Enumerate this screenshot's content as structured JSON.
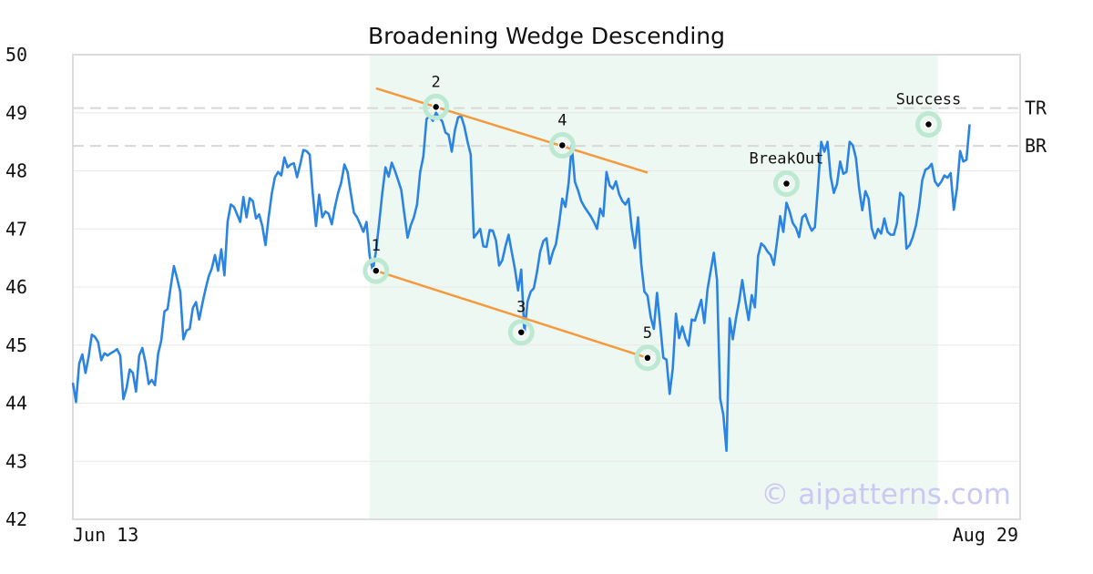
{
  "chart_data": {
    "type": "line",
    "title": "Broadening Wedge Descending",
    "ylim": [
      42,
      50
    ],
    "yticks": [
      "42",
      "43",
      "44",
      "45",
      "46",
      "47",
      "48",
      "49",
      "50"
    ],
    "x_labels": {
      "start": "Jun 13",
      "end": "Aug 29"
    },
    "x_count": 300,
    "grid": true,
    "colors": {
      "price": "#2b84e2",
      "trendline": "#f59a3c",
      "shade": "#eef8f3",
      "marker_ring": "#bde9d3",
      "level": "#d8d8d8",
      "frame": "#dcdcdc",
      "grid": "#e8e8e8"
    },
    "shaded_region": {
      "x_start": 94,
      "x_end": 274
    },
    "levels": [
      {
        "name": "TR",
        "value": 49.08
      },
      {
        "name": "BR",
        "value": 48.43
      }
    ],
    "trendlines": [
      {
        "name": "upper",
        "x1": 96,
        "y1": 49.42,
        "x2": 182,
        "y2": 47.97
      },
      {
        "name": "lower",
        "x1": 96,
        "y1": 46.28,
        "x2": 182,
        "y2": 44.78
      }
    ],
    "points": [
      {
        "label": "1",
        "x": 96,
        "y": 46.28
      },
      {
        "label": "2",
        "x": 115,
        "y": 49.1
      },
      {
        "label": "3",
        "x": 142,
        "y": 45.22
      },
      {
        "label": "4",
        "x": 155,
        "y": 48.44
      },
      {
        "label": "5",
        "x": 182,
        "y": 44.78
      },
      {
        "label": "BreakOut",
        "x": 226,
        "y": 47.78
      },
      {
        "label": "Success",
        "x": 271,
        "y": 48.8
      }
    ],
    "series": [
      {
        "values": [
          44.35,
          44.02,
          44.68,
          44.84,
          44.52,
          44.8,
          45.18,
          45.14,
          45.05,
          44.74,
          44.86,
          44.82,
          44.86,
          44.89,
          44.93,
          44.82,
          44.07,
          44.26,
          44.58,
          44.52,
          44.2,
          44.82,
          44.95,
          44.7,
          44.33,
          44.4,
          44.31,
          44.85,
          45.08,
          45.58,
          45.62,
          46.01,
          46.36,
          46.15,
          45.92,
          45.1,
          45.25,
          45.28,
          45.64,
          45.74,
          45.44,
          45.71,
          45.96,
          46.18,
          46.32,
          46.55,
          46.28,
          46.65,
          46.2,
          47.12,
          47.42,
          47.38,
          47.25,
          47.12,
          47.55,
          47.2,
          47.53,
          47.48,
          47.18,
          47.25,
          47.05,
          46.72,
          47.2,
          47.61,
          47.89,
          47.98,
          47.92,
          48.23,
          48.06,
          48.11,
          48.13,
          47.89,
          48.11,
          48.36,
          48.34,
          48.28,
          47.6,
          47.05,
          47.59,
          47.2,
          47.3,
          47.26,
          47.08,
          47.38,
          47.62,
          47.8,
          48.11,
          47.98,
          47.62,
          47.28,
          47.2,
          47.08,
          46.95,
          47.12,
          46.53,
          46.28,
          46.62,
          47.1,
          47.62,
          48.06,
          47.9,
          48.14,
          48.0,
          47.84,
          47.67,
          47.25,
          46.85,
          47.06,
          47.2,
          47.42,
          47.98,
          48.25,
          48.89,
          48.95,
          48.86,
          49.0,
          48.92,
          48.85,
          48.66,
          48.62,
          48.33,
          48.7,
          48.92,
          48.94,
          48.76,
          48.5,
          48.28,
          46.85,
          46.92,
          47.0,
          46.7,
          46.69,
          46.98,
          46.97,
          46.8,
          46.37,
          46.46,
          46.7,
          46.9,
          46.6,
          46.31,
          45.94,
          46.3,
          45.21,
          45.75,
          45.92,
          45.98,
          46.26,
          46.61,
          46.79,
          46.84,
          46.4,
          46.6,
          46.74,
          47.1,
          47.52,
          47.38,
          47.79,
          48.44,
          47.81,
          47.66,
          47.48,
          47.38,
          47.3,
          47.22,
          47.12,
          47.0,
          47.35,
          47.22,
          47.98,
          47.75,
          47.69,
          47.82,
          47.6,
          47.48,
          47.42,
          47.52,
          47.01,
          46.67,
          47.2,
          46.4,
          45.92,
          45.85,
          45.48,
          45.28,
          45.9,
          45.35,
          44.78,
          44.75,
          44.16,
          44.6,
          45.54,
          45.12,
          45.32,
          45.12,
          44.99,
          45.44,
          45.42,
          45.6,
          45.78,
          45.38,
          45.96,
          46.28,
          46.59,
          46.12,
          44.08,
          43.8,
          43.18,
          45.46,
          45.1,
          45.46,
          45.75,
          46.12,
          45.75,
          45.43,
          45.86,
          45.65,
          46.53,
          46.75,
          46.7,
          46.61,
          46.55,
          46.38,
          46.78,
          47.22,
          46.95,
          47.45,
          47.3,
          47.1,
          47.02,
          46.86,
          47.2,
          47.25,
          47.09,
          46.97,
          47.03,
          47.75,
          48.5,
          48.33,
          48.5,
          47.9,
          47.62,
          47.77,
          48.16,
          47.95,
          47.98,
          48.5,
          48.44,
          48.22,
          47.7,
          47.32,
          47.65,
          47.52,
          47.01,
          46.84,
          47.0,
          46.92,
          47.18,
          46.95,
          46.9,
          46.9,
          47.1,
          47.62,
          47.56,
          46.66,
          46.72,
          46.86,
          47.06,
          47.38,
          47.84,
          48.02,
          48.05,
          48.12,
          47.82,
          47.74,
          47.81,
          47.92,
          47.88,
          47.96,
          47.33,
          47.7,
          48.34,
          48.16,
          48.19,
          48.8
        ]
      }
    ]
  },
  "watermark": "© aipatterns.com"
}
